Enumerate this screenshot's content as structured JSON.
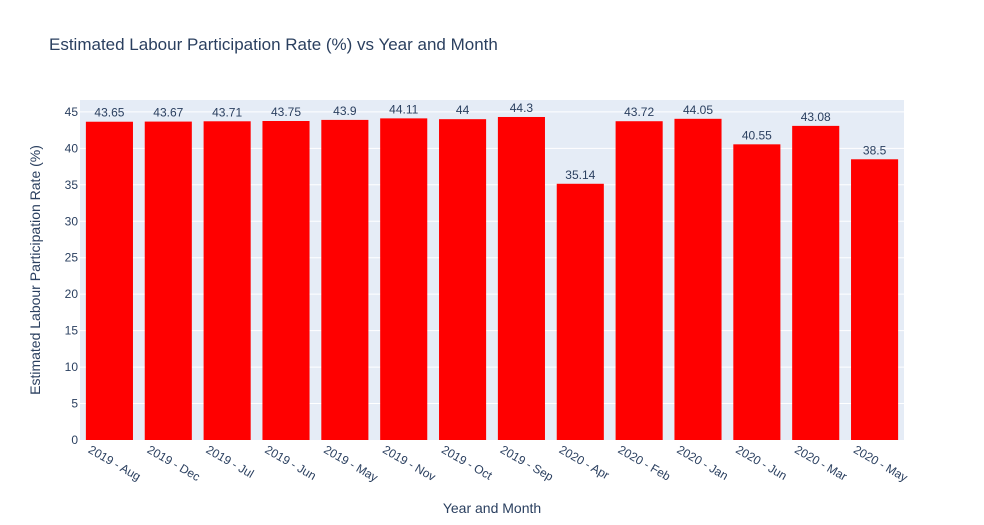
{
  "chart_data": {
    "type": "bar",
    "title": "Estimated Labour Participation Rate (%) vs Year and Month",
    "xlabel": "Year and Month",
    "ylabel": "Estimated Labour Participation Rate (%)",
    "categories": [
      "2019 - Aug",
      "2019 - Dec",
      "2019 - Jul",
      "2019 - Jun",
      "2019 - May",
      "2019 - Nov",
      "2019 - Oct",
      "2019 - Sep",
      "2020 - Apr",
      "2020 - Feb",
      "2020 - Jan",
      "2020 - Jun",
      "2020 - Mar",
      "2020 - May"
    ],
    "values": [
      43.65,
      43.67,
      43.71,
      43.75,
      43.9,
      44.11,
      44,
      44.3,
      35.14,
      43.72,
      44.05,
      40.55,
      43.08,
      38.5
    ],
    "ylim": [
      0,
      46.63
    ],
    "yticks": [
      0,
      5,
      10,
      15,
      20,
      25,
      30,
      35,
      40,
      45
    ],
    "bar_color": "#ff0000",
    "plot_background": "#e5ecf6",
    "grid": true,
    "legend": "none"
  }
}
